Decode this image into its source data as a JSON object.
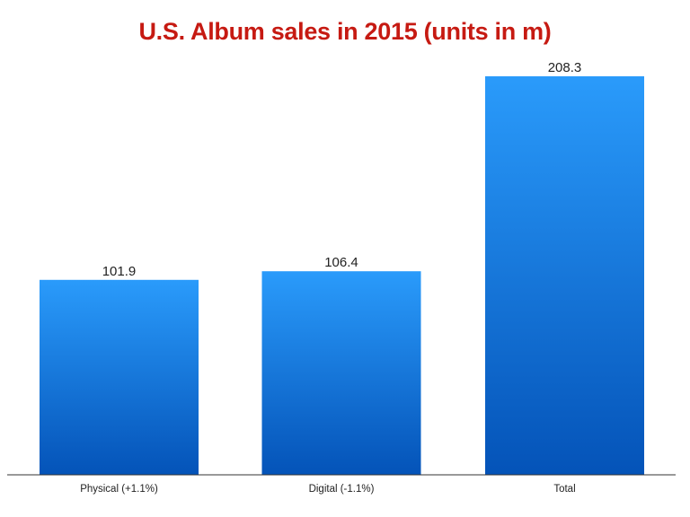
{
  "colors": {
    "title": "#c61a12",
    "bar_top": "#2a9bfb",
    "bar_bottom": "#0453b8",
    "axis": "#333333"
  },
  "chart_data": {
    "type": "bar",
    "title": "U.S. Album sales in 2015 (units in m)",
    "categories": [
      "Physical (+1.1%)",
      "Digital (-1.1%)",
      "Total"
    ],
    "values": [
      101.9,
      106.4,
      208.3
    ],
    "value_labels": [
      "101.9",
      "106.4",
      "208.3"
    ],
    "xlabel": "",
    "ylabel": "",
    "ylim": [
      0,
      208.3
    ],
    "grid": false,
    "legend": "none"
  }
}
